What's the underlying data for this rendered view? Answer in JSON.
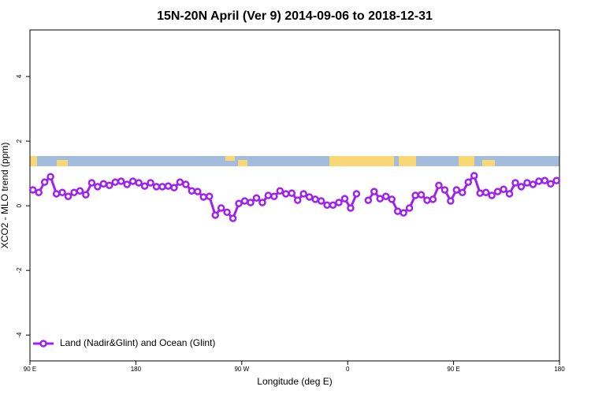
{
  "chart_data": {
    "type": "line",
    "title": "15N-20N April (Ver 9)   2014-09-06 to 2018-12-31",
    "xlabel": "Longitude (deg E)",
    "ylabel": "XCO2 - MLO trend (ppm)",
    "xlim": [
      90,
      540
    ],
    "ylim": [
      -4.8,
      5.44
    ],
    "xticks": [
      {
        "value": 90,
        "label": "90 E"
      },
      {
        "value": 180,
        "label": "180"
      },
      {
        "value": 270,
        "label": "90 W"
      },
      {
        "value": 360,
        "label": "0"
      },
      {
        "value": 450,
        "label": "90 E"
      },
      {
        "value": 540,
        "label": "180"
      }
    ],
    "yticks": [
      -4,
      -2,
      0,
      2,
      4
    ],
    "legend": "bottom-left",
    "x": [
      92.5,
      97.5,
      102.5,
      107.5,
      112.5,
      117.5,
      122.5,
      127.5,
      132.5,
      137.5,
      142.5,
      147.5,
      152.5,
      157.5,
      162.5,
      167.5,
      172.5,
      177.5,
      182.5,
      187.5,
      192.5,
      197.5,
      202.5,
      207.5,
      212.5,
      217.5,
      222.5,
      227.5,
      232.5,
      237.5,
      242.5,
      247.5,
      252.5,
      257.5,
      262.5,
      267.5,
      272.5,
      277.5,
      282.5,
      287.5,
      292.5,
      297.5,
      302.5,
      307.5,
      312.5,
      317.5,
      322.5,
      327.5,
      332.5,
      337.5,
      342.5,
      347.5,
      352.5,
      357.5,
      362.5,
      367.5,
      372.5,
      377.5,
      382.5,
      387.5,
      392.5,
      397.5,
      402.5,
      407.5,
      412.5,
      417.5,
      422.5,
      427.5,
      432.5,
      437.5,
      442.5,
      447.5,
      452.5,
      457.5,
      462.5,
      467.5,
      472.5,
      477.5,
      482.5,
      487.5,
      492.5,
      497.5,
      502.5,
      507.5,
      512.5,
      517.5,
      522.5,
      527.5,
      532.5,
      537.5
    ],
    "series": [
      {
        "name": "Land (Nadir&Glint) and Ocean (Glint)",
        "color": "#a020f0",
        "values": [
          0.49,
          0.41,
          0.73,
          0.9,
          0.37,
          0.41,
          0.29,
          0.41,
          0.46,
          0.34,
          0.71,
          0.59,
          0.68,
          0.63,
          0.73,
          0.76,
          0.66,
          0.76,
          0.71,
          0.61,
          0.71,
          0.59,
          0.59,
          0.61,
          0.56,
          0.73,
          0.66,
          0.46,
          0.44,
          0.27,
          0.29,
          -0.29,
          -0.07,
          -0.2,
          -0.39,
          0.07,
          0.15,
          0.1,
          0.24,
          0.1,
          0.32,
          0.29,
          0.46,
          0.37,
          0.39,
          0.17,
          0.37,
          0.27,
          0.2,
          0.15,
          0.02,
          0.02,
          0.1,
          0.22,
          -0.07,
          0.37,
          null,
          0.17,
          0.44,
          0.22,
          0.29,
          0.2,
          -0.17,
          -0.22,
          -0.07,
          0.32,
          0.34,
          0.17,
          0.2,
          0.63,
          0.49,
          0.15,
          0.49,
          0.41,
          0.73,
          0.93,
          0.39,
          0.41,
          0.32,
          0.44,
          0.51,
          0.37,
          0.71,
          0.59,
          0.71,
          0.66,
          0.76,
          0.78,
          0.68,
          0.78
        ]
      }
    ]
  }
}
